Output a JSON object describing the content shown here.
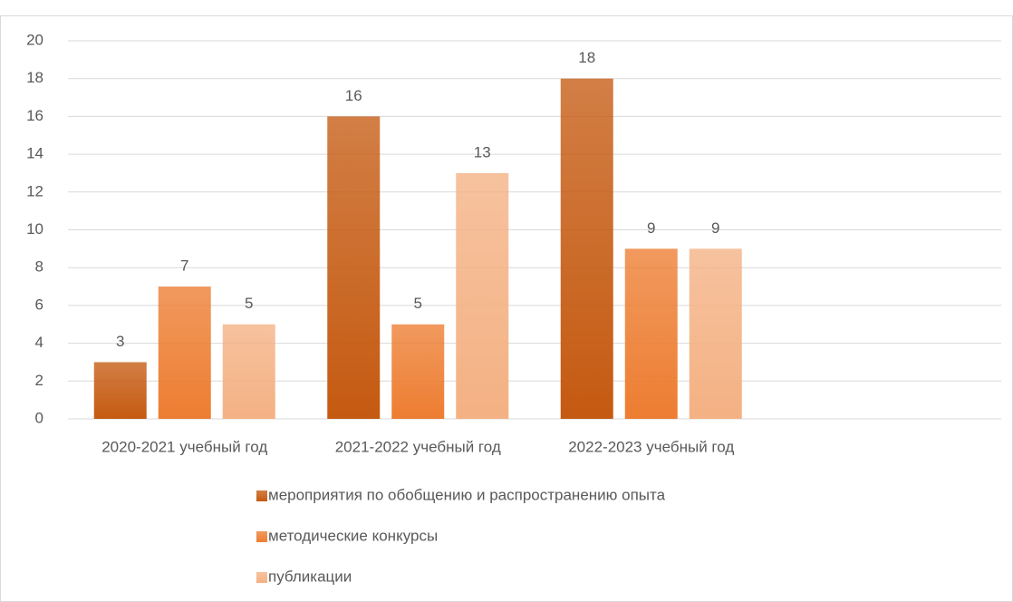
{
  "chart_data": {
    "type": "bar",
    "categories": [
      "2020-2021 учебный год",
      "2021-2022 учебный год",
      "2022-2023 учебный год",
      null
    ],
    "series": [
      {
        "name": "мероприятия по обобщению и распространению опыта",
        "color": "#c55a11",
        "values": [
          3,
          16,
          18,
          null
        ]
      },
      {
        "name": "методические конкурсы",
        "color": "#ed7d31",
        "values": [
          7,
          5,
          9,
          null
        ]
      },
      {
        "name": "публикации",
        "color": "#f4b183",
        "values": [
          5,
          13,
          9,
          null
        ]
      }
    ],
    "ylim": [
      0,
      20
    ],
    "yticks": [
      0,
      2,
      4,
      6,
      8,
      10,
      12,
      14,
      16,
      18,
      20
    ],
    "grid": true,
    "legend": "bottom"
  }
}
